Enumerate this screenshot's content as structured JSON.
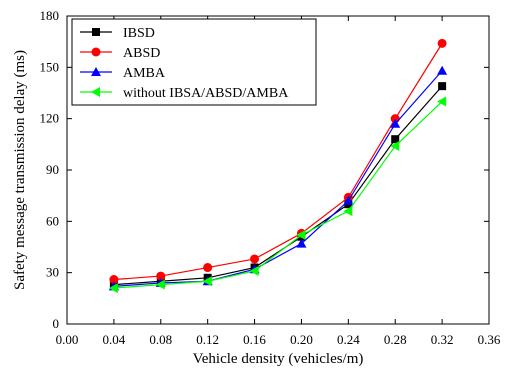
{
  "chart_data": {
    "type": "line",
    "xlabel": "Vehicle density (vehicles/m)",
    "ylabel": "Safety message transmission delay (ms)",
    "xlim": [
      0.0,
      0.36
    ],
    "ylim": [
      0,
      180
    ],
    "x_ticks": [
      0.0,
      0.04,
      0.08,
      0.12,
      0.16,
      0.2,
      0.24,
      0.28,
      0.32,
      0.36
    ],
    "x_tick_labels": [
      "0.00",
      "0.04",
      "0.08",
      "0.12",
      "0.16",
      "0.20",
      "0.24",
      "0.28",
      "0.32",
      "0.36"
    ],
    "y_ticks": [
      0,
      30,
      60,
      90,
      120,
      150,
      180
    ],
    "y_tick_labels": [
      "0",
      "30",
      "60",
      "90",
      "120",
      "150",
      "180"
    ],
    "grid": false,
    "legend_position": "top-left",
    "x": [
      0.04,
      0.08,
      0.12,
      0.16,
      0.2,
      0.24,
      0.28,
      0.32
    ],
    "series": [
      {
        "name": "IBSD",
        "color": "#000000",
        "marker": "square",
        "values": [
          23,
          25,
          27,
          33,
          51,
          70,
          108,
          139
        ]
      },
      {
        "name": "ABSD",
        "color": "#ff0000",
        "marker": "circle",
        "values": [
          26,
          28,
          33,
          38,
          53,
          74,
          120,
          164
        ]
      },
      {
        "name": "AMBA",
        "color": "#0000ff",
        "marker": "triangle-up",
        "values": [
          22,
          24,
          25,
          32,
          47,
          72,
          117,
          148
        ]
      },
      {
        "name": "without IBSA/ABSD/AMBA",
        "color": "#00ff00",
        "marker": "triangle-left",
        "values": [
          21,
          23,
          25,
          31,
          52,
          66,
          104,
          130
        ]
      }
    ]
  }
}
